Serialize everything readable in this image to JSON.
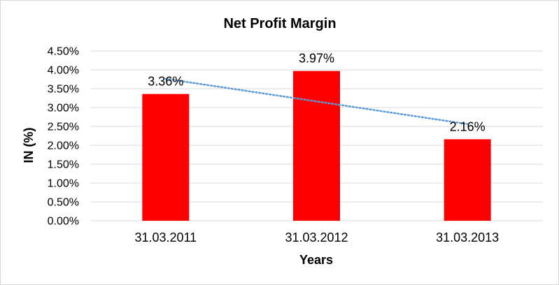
{
  "chart_data": {
    "type": "bar",
    "title": "Net Profit Margin",
    "xlabel": "Years",
    "ylabel": "IN (%)",
    "categories": [
      "31.03.2011",
      "31.03.2012",
      "31.03.2013"
    ],
    "values": [
      3.36,
      3.97,
      2.16
    ],
    "data_labels": [
      "3.36%",
      "3.97%",
      "2.16%"
    ],
    "ylim": [
      0,
      4.5
    ],
    "yticks": [
      0,
      0.5,
      1.0,
      1.5,
      2.0,
      2.5,
      3.0,
      3.5,
      4.0,
      4.5
    ],
    "ytick_labels": [
      "0.00%",
      "0.50%",
      "1.00%",
      "1.50%",
      "2.00%",
      "2.50%",
      "3.00%",
      "3.50%",
      "4.00%",
      "4.50%"
    ],
    "grid": true,
    "legend": "none",
    "trendline": {
      "type": "linear",
      "style": "dotted"
    },
    "colors": {
      "bar": "#ff0000",
      "trendline": "#5b9bd5",
      "grid": "#d9d9d9"
    }
  }
}
